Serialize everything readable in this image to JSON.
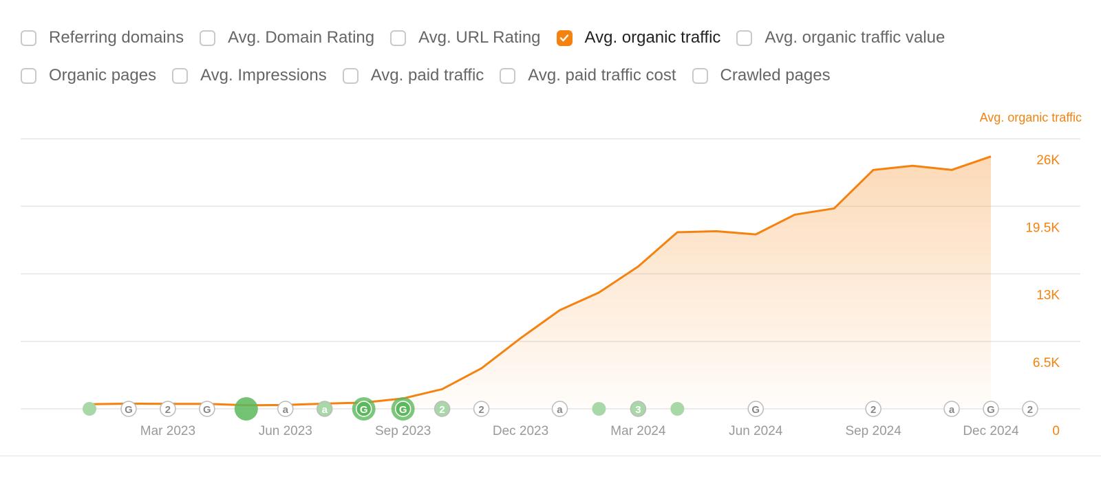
{
  "filters": {
    "row1": [
      {
        "label": "Referring domains",
        "checked": false,
        "name": "checkbox-referring-domains"
      },
      {
        "label": "Avg. Domain Rating",
        "checked": false,
        "name": "checkbox-avg-domain-rating"
      },
      {
        "label": "Avg. URL Rating",
        "checked": false,
        "name": "checkbox-avg-url-rating"
      },
      {
        "label": "Avg. organic traffic",
        "checked": true,
        "name": "checkbox-avg-organic-traffic"
      },
      {
        "label": "Avg. organic traffic value",
        "checked": false,
        "name": "checkbox-avg-organic-traffic-value"
      }
    ],
    "row2": [
      {
        "label": "Organic pages",
        "checked": false,
        "name": "checkbox-organic-pages"
      },
      {
        "label": "Avg. Impressions",
        "checked": false,
        "name": "checkbox-avg-impressions"
      },
      {
        "label": "Avg. paid traffic",
        "checked": false,
        "name": "checkbox-avg-paid-traffic"
      },
      {
        "label": "Avg. paid traffic cost",
        "checked": false,
        "name": "checkbox-avg-paid-traffic-cost"
      },
      {
        "label": "Crawled pages",
        "checked": false,
        "name": "checkbox-crawled-pages"
      }
    ]
  },
  "colors": {
    "accent": "#f5820f",
    "axis_text": "#f5820f",
    "date_text": "#999999",
    "grid": "#e6e6e6",
    "marker_green": "#5cb85c",
    "marker_light_green": "#a8d8a8"
  },
  "chart_data": {
    "type": "area",
    "series_label": "Avg. organic traffic",
    "x_range": [
      "2023-01-01",
      "2024-12-01"
    ],
    "x_tick_labels": [
      {
        "label": "Mar 2023",
        "date": "2023-03-01"
      },
      {
        "label": "Jun 2023",
        "date": "2023-06-01"
      },
      {
        "label": "Sep 2023",
        "date": "2023-09-01"
      },
      {
        "label": "Dec 2023",
        "date": "2023-12-01"
      },
      {
        "label": "Mar 2024",
        "date": "2024-03-01"
      },
      {
        "label": "Jun 2024",
        "date": "2024-06-01"
      },
      {
        "label": "Sep 2024",
        "date": "2024-09-01"
      },
      {
        "label": "Dec 2024",
        "date": "2024-12-01"
      }
    ],
    "y_ticks": [
      {
        "label": "0",
        "value": 0
      },
      {
        "label": "6.5K",
        "value": 6500
      },
      {
        "label": "13K",
        "value": 13000
      },
      {
        "label": "19.5K",
        "value": 19500
      },
      {
        "label": "26K",
        "value": 26000
      }
    ],
    "ylim": [
      0,
      26000
    ],
    "grid": true,
    "points": [
      {
        "date": "2023-01-01",
        "value": 450
      },
      {
        "date": "2023-02-01",
        "value": 500
      },
      {
        "date": "2023-03-01",
        "value": 480
      },
      {
        "date": "2023-04-01",
        "value": 480
      },
      {
        "date": "2023-05-01",
        "value": 350
      },
      {
        "date": "2023-06-01",
        "value": 370
      },
      {
        "date": "2023-07-01",
        "value": 500
      },
      {
        "date": "2023-08-01",
        "value": 600
      },
      {
        "date": "2023-09-01",
        "value": 1000
      },
      {
        "date": "2023-10-01",
        "value": 1900
      },
      {
        "date": "2023-11-01",
        "value": 3900
      },
      {
        "date": "2023-12-01",
        "value": 6800
      },
      {
        "date": "2024-01-01",
        "value": 9500
      },
      {
        "date": "2024-02-01",
        "value": 11200
      },
      {
        "date": "2024-03-01",
        "value": 13700
      },
      {
        "date": "2024-04-01",
        "value": 17000
      },
      {
        "date": "2024-05-01",
        "value": 17100
      },
      {
        "date": "2024-06-01",
        "value": 16800
      },
      {
        "date": "2024-07-01",
        "value": 18700
      },
      {
        "date": "2024-08-01",
        "value": 19300
      },
      {
        "date": "2024-09-01",
        "value": 23000
      },
      {
        "date": "2024-10-01",
        "value": 23400
      },
      {
        "date": "2024-11-01",
        "value": 23000
      },
      {
        "date": "2024-12-01",
        "value": 24300
      }
    ],
    "annotations": [
      {
        "date": "2023-01-01",
        "kind": "light-dot"
      },
      {
        "date": "2023-02-01",
        "kind": "label",
        "text": "G"
      },
      {
        "date": "2023-03-01",
        "kind": "label",
        "text": "2"
      },
      {
        "date": "2023-04-01",
        "kind": "label",
        "text": "G"
      },
      {
        "date": "2023-05-01",
        "kind": "big-dot"
      },
      {
        "date": "2023-06-01",
        "kind": "label",
        "text": "a"
      },
      {
        "date": "2023-07-01",
        "kind": "label-green",
        "text": "a"
      },
      {
        "date": "2023-08-01",
        "kind": "label-big",
        "text": "G"
      },
      {
        "date": "2023-09-01",
        "kind": "label-big",
        "text": "G"
      },
      {
        "date": "2023-10-01",
        "kind": "label-green",
        "text": "2"
      },
      {
        "date": "2023-11-01",
        "kind": "label",
        "text": "2"
      },
      {
        "date": "2024-01-01",
        "kind": "label",
        "text": "a"
      },
      {
        "date": "2024-02-01",
        "kind": "light-dot"
      },
      {
        "date": "2024-03-01",
        "kind": "label-green",
        "text": "3"
      },
      {
        "date": "2024-04-01",
        "kind": "light-dot"
      },
      {
        "date": "2024-06-01",
        "kind": "label",
        "text": "G"
      },
      {
        "date": "2024-09-01",
        "kind": "label",
        "text": "2"
      },
      {
        "date": "2024-11-01",
        "kind": "label",
        "text": "a"
      },
      {
        "date": "2024-12-01",
        "kind": "label",
        "text": "G"
      },
      {
        "date": "2025-01-01",
        "kind": "label",
        "text": "2"
      }
    ]
  }
}
